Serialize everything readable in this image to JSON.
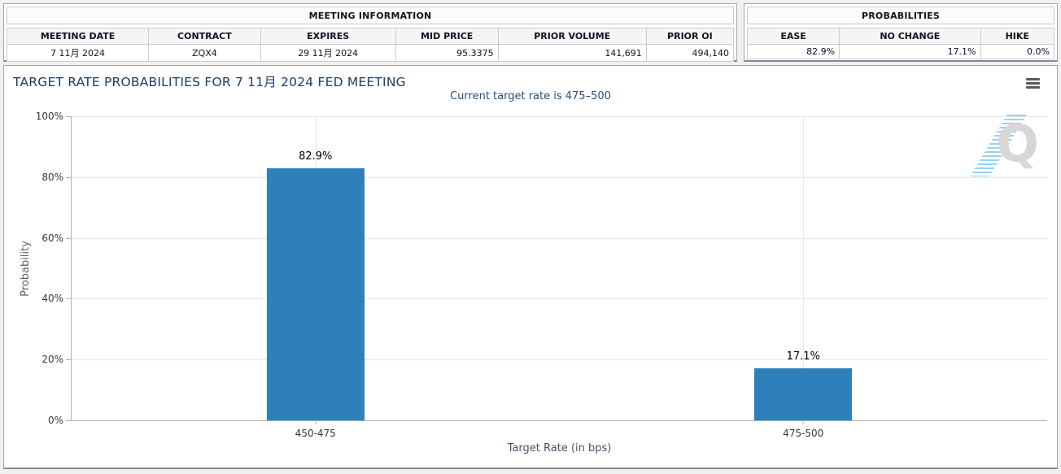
{
  "meeting_info": {
    "title": "MEETING INFORMATION",
    "columns": [
      "MEETING DATE",
      "CONTRACT",
      "EXPIRES",
      "MID PRICE",
      "PRIOR VOLUME",
      "PRIOR OI"
    ],
    "values": [
      "7 11月 2024",
      "ZQX4",
      "29 11月 2024",
      "95.3375",
      "141,691",
      "494,140"
    ]
  },
  "probabilities": {
    "title": "PROBABILITIES",
    "columns": [
      "EASE",
      "NO CHANGE",
      "HIKE"
    ],
    "values": [
      "82.9%",
      "17.1%",
      "0.0%"
    ]
  },
  "chart": {
    "title": "TARGET RATE PROBABILITIES FOR 7 11月 2024 FED MEETING",
    "subtitle": "Current target rate is 475–500",
    "watermark_letter": "Q"
  },
  "chart_data": {
    "type": "bar",
    "categories": [
      "450-475",
      "475-500"
    ],
    "values": [
      82.9,
      17.1
    ],
    "data_labels": [
      "82.9%",
      "17.1%"
    ],
    "title": "TARGET RATE PROBABILITIES FOR 7 11月 2024 FED MEETING",
    "subtitle": "Current target rate is 475–500",
    "xlabel": "Target Rate (in bps)",
    "ylabel": "Probability",
    "ylim": [
      0,
      100
    ],
    "yticks": [
      "0%",
      "20%",
      "40%",
      "60%",
      "80%",
      "100%"
    ],
    "grid": true,
    "legend": "none",
    "bar_color": "#2d80ba"
  },
  "colors": {
    "bar": "#2d80ba",
    "chart_title_text": "#1d3c65",
    "subtitle_text": "#2a4d79",
    "gridline": "#e6e6e6",
    "panel_border": "#a6a6a6",
    "page_background": "#f0f0ee"
  }
}
